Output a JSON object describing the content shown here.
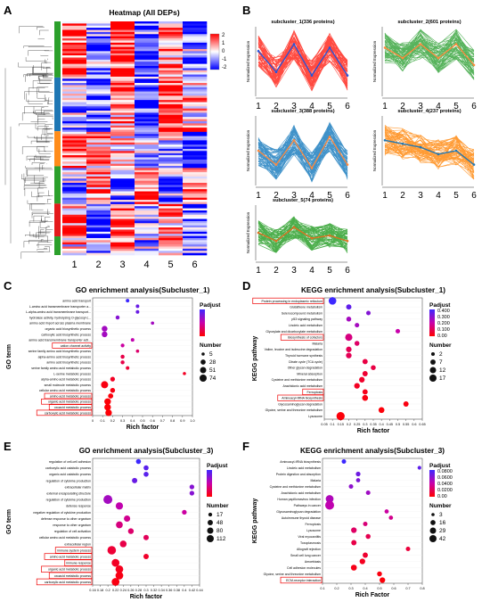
{
  "panels": {
    "A": {
      "label": "A",
      "title": "Heatmap (All DEPs)",
      "legend_ticks": [
        "2",
        "1",
        "0",
        "-1",
        "-2"
      ],
      "columns": [
        "1",
        "2",
        "3",
        "4",
        "5",
        "6"
      ],
      "colors": {
        "high": "#ff0000",
        "mid": "#ffffff",
        "low": "#0000ff"
      }
    },
    "B": {
      "label": "B",
      "ylabel": "Normalized Expression",
      "xticks": [
        "1",
        "2",
        "3",
        "4",
        "5",
        "6"
      ],
      "subclusters": [
        {
          "title": "subcluster_1(336 proteins)",
          "color": "#ff2a1f",
          "mean_color": "#2255dd",
          "trend": [
            0.65,
            0.35,
            0.75,
            0.3,
            0.7,
            0.3
          ]
        },
        {
          "title": "subcluster_2(601 proteins)",
          "color": "#3aa63f",
          "mean_color": "#ff8a3d",
          "trend": [
            0.7,
            0.55,
            0.75,
            0.55,
            0.75,
            0.45
          ]
        },
        {
          "title": "subcluster_3(388 proteins)",
          "color": "#1f7fbf",
          "mean_color": "#ff8a3d",
          "trend": [
            0.5,
            0.3,
            0.65,
            0.25,
            0.7,
            0.3
          ]
        },
        {
          "title": "subcluster_4(237 proteins)",
          "color": "#ff8a10",
          "mean_color": "#1f77b4",
          "trend": [
            0.65,
            0.6,
            0.55,
            0.45,
            0.5,
            0.3
          ]
        },
        {
          "title": "subcluster_5(74 proteins)",
          "color": "#2ca02c",
          "mean_color": "#e07020",
          "trend": [
            0.5,
            0.35,
            0.6,
            0.4,
            0.45,
            0.35
          ]
        }
      ]
    },
    "C": {
      "label": "C",
      "title": "GO enrichment analysis(Subcluster_1)",
      "xlabel": "Rich factor",
      "ylabel": "GO term",
      "xticks": [
        "0",
        "0.1",
        "0.2",
        "0.3",
        "0.4",
        "0.5",
        "0.6",
        "0.7",
        "0.8",
        "0.9",
        "1.0"
      ],
      "legend": {
        "padjust_title": "Padjust",
        "padjust_ticks": [
          "",
          "",
          "",
          "",
          "",
          ""
        ],
        "number_title": "Number",
        "number_values": [
          "5",
          "28",
          "51",
          "74"
        ]
      },
      "rows": [
        {
          "term": "amino acid transport",
          "rf": 0.35,
          "n": 8,
          "p": 0.95,
          "hl": false
        },
        {
          "term": "L-amino acid transmembrane transporter a...",
          "rf": 0.45,
          "n": 8,
          "p": 0.8,
          "hl": false
        },
        {
          "term": "L-alpha-amino acid transmembrane transport...",
          "rf": 0.45,
          "n": 8,
          "p": 0.8,
          "hl": false
        },
        {
          "term": "hydrolase activity, hydrolyzing O-glycosyl c...",
          "rf": 0.25,
          "n": 12,
          "p": 0.7,
          "hl": false
        },
        {
          "term": "amino acid import across plasma membrane",
          "rf": 0.6,
          "n": 6,
          "p": 0.6,
          "hl": false
        },
        {
          "term": "organic acid biosynthetic process",
          "rf": 0.12,
          "n": 40,
          "p": 0.6,
          "hl": false
        },
        {
          "term": "carboxylic acid biosynthetic process",
          "rf": 0.12,
          "n": 40,
          "p": 0.6,
          "hl": false
        },
        {
          "term": "amino acid transmembrane transporter acti...",
          "rf": 0.4,
          "n": 8,
          "p": 0.5,
          "hl": false
        },
        {
          "term": "cation channel activity",
          "rf": 0.3,
          "n": 10,
          "p": 0.45,
          "hl": true
        },
        {
          "term": "serine family amino acid biosynthetic process",
          "rf": 0.45,
          "n": 6,
          "p": 0.3,
          "hl": false
        },
        {
          "term": "alpha-amino acid biosynthetic process",
          "rf": 0.3,
          "n": 12,
          "p": 0.2,
          "hl": false
        },
        {
          "term": "amino acid biosynthetic process",
          "rf": 0.3,
          "n": 12,
          "p": 0.2,
          "hl": false
        },
        {
          "term": "serine family amino acid metabolic process",
          "rf": 0.35,
          "n": 8,
          "p": 0.15,
          "hl": false
        },
        {
          "term": "L-serine metabolic process",
          "rf": 0.92,
          "n": 5,
          "p": 0.1,
          "hl": false
        },
        {
          "term": "alpha-amino acid metabolic process",
          "rf": 0.2,
          "n": 22,
          "p": 0.1,
          "hl": false
        },
        {
          "term": "small molecule metabolic process",
          "rf": 0.12,
          "n": 74,
          "p": 0.05,
          "hl": false
        },
        {
          "term": "cellular amino acid metabolic process",
          "rf": 0.2,
          "n": 25,
          "p": 0.05,
          "hl": false
        },
        {
          "term": "amino acid metabolic process",
          "rf": 0.18,
          "n": 30,
          "p": 0.03,
          "hl": true
        },
        {
          "term": "organic acid metabolic process",
          "rf": 0.15,
          "n": 60,
          "p": 0.02,
          "hl": true
        },
        {
          "term": "oxoacid metabolic process",
          "rf": 0.15,
          "n": 60,
          "p": 0.02,
          "hl": true
        },
        {
          "term": "carboxylic acid metabolic process",
          "rf": 0.16,
          "n": 58,
          "p": 0.02,
          "hl": true
        }
      ]
    },
    "D": {
      "label": "D",
      "title": "KEGG enrichment analysis(Subcluster_1)",
      "xlabel": "Rich factor",
      "ylabel": "KEGG pathway",
      "xticks": [
        "0.05",
        "0.1",
        "0.15",
        "0.2",
        "0.25",
        "0.3",
        "0.35",
        "0.4",
        "0.45",
        "0.5",
        "0.55",
        "0.6",
        "0.65"
      ],
      "legend": {
        "padjust_title": "Padjust",
        "padjust_ticks": [
          "0.400",
          "0.300",
          "0.200",
          "0.100",
          "0.00"
        ],
        "number_title": "Number",
        "number_values": [
          "2",
          "7",
          "12",
          "17"
        ]
      },
      "rows": [
        {
          "term": "Protein processing in endoplasmic reticulum",
          "rf": 0.1,
          "n": 14,
          "p": 0.4,
          "hl": true
        },
        {
          "term": "Glutathione metabolism",
          "rf": 0.2,
          "n": 5,
          "p": 0.35,
          "hl": false
        },
        {
          "term": "Selenocompound metabolism",
          "rf": 0.32,
          "n": 3,
          "p": 0.3,
          "hl": false
        },
        {
          "term": "p53 signaling pathway",
          "rf": 0.2,
          "n": 4,
          "p": 0.25,
          "hl": false
        },
        {
          "term": "Linoleic acid metabolism",
          "rf": 0.25,
          "n": 3,
          "p": 0.25,
          "hl": false
        },
        {
          "term": "Glyoxylate and dicarboxylate metabolism",
          "rf": 0.5,
          "n": 3,
          "p": 0.2,
          "hl": false
        },
        {
          "term": "Biosynthesis of cofactors",
          "rf": 0.2,
          "n": 12,
          "p": 0.15,
          "hl": true
        },
        {
          "term": "Malaria",
          "rf": 0.25,
          "n": 4,
          "p": 0.12,
          "hl": false
        },
        {
          "term": "Valine, leucine and isoleucine degradation",
          "rf": 0.2,
          "n": 6,
          "p": 0.1,
          "hl": false
        },
        {
          "term": "Thyroid hormone synthesis",
          "rf": 0.2,
          "n": 6,
          "p": 0.1,
          "hl": false
        },
        {
          "term": "Citrate cycle (TCA cycle)",
          "rf": 0.3,
          "n": 5,
          "p": 0.08,
          "hl": false
        },
        {
          "term": "Other glycan degradation",
          "rf": 0.35,
          "n": 4,
          "p": 0.08,
          "hl": false
        },
        {
          "term": "Mineral absorption",
          "rf": 0.3,
          "n": 5,
          "p": 0.06,
          "hl": false
        },
        {
          "term": "Cysteine and methionine metabolism",
          "rf": 0.28,
          "n": 6,
          "p": 0.05,
          "hl": false
        },
        {
          "term": "Arachidonic acid metabolism",
          "rf": 0.25,
          "n": 6,
          "p": 0.04,
          "hl": false
        },
        {
          "term": "Ferroptosis",
          "rf": 0.3,
          "n": 5,
          "p": 0.03,
          "hl": true
        },
        {
          "term": "Aminoacyl-tRNA biosynthesis",
          "rf": 0.3,
          "n": 7,
          "p": 0.02,
          "hl": true
        },
        {
          "term": "Glycosaminoglycan degradation",
          "rf": 0.55,
          "n": 5,
          "p": 0.02,
          "hl": false
        },
        {
          "term": "Glycine, serine and threonine metabolism",
          "rf": 0.4,
          "n": 7,
          "p": 0.01,
          "hl": false
        },
        {
          "term": "Lysosome",
          "rf": 0.15,
          "n": 17,
          "p": 0.01,
          "hl": false
        }
      ]
    },
    "E": {
      "label": "E",
      "title": "GO enrichment analysis(Subcluster_3)",
      "xlabel": "Rich factor",
      "ylabel": "GO term",
      "xticks": [
        "0.16",
        "0.18",
        "0.2",
        "0.22",
        "0.24",
        "0.26",
        "0.28",
        "0.3",
        "0.32",
        "0.34",
        "0.36",
        "0.38",
        "0.4",
        "0.42",
        "0.44"
      ],
      "legend": {
        "padjust_title": "Padjust",
        "padjust_ticks": [
          "",
          "",
          "",
          "",
          ""
        ],
        "number_title": "Number",
        "number_values": [
          "17",
          "48",
          "80",
          "112"
        ]
      },
      "rows": [
        {
          "term": "regulation of cell-cell adhesion",
          "rf": 0.28,
          "n": 20,
          "p": 0.95,
          "hl": false
        },
        {
          "term": "carboxylic acid catabolic process",
          "rf": 0.3,
          "n": 20,
          "p": 0.85,
          "hl": false
        },
        {
          "term": "organic acid catabolic process",
          "rf": 0.3,
          "n": 20,
          "p": 0.85,
          "hl": false
        },
        {
          "term": "regulation of cytokine production",
          "rf": 0.27,
          "n": 25,
          "p": 0.8,
          "hl": false
        },
        {
          "term": "extracellular matrix",
          "rf": 0.42,
          "n": 17,
          "p": 0.7,
          "hl": false
        },
        {
          "term": "external encapsulating structure",
          "rf": 0.42,
          "n": 17,
          "p": 0.7,
          "hl": false
        },
        {
          "term": "regulation of cytokine production",
          "rf": 0.2,
          "n": 100,
          "p": 0.6,
          "hl": false
        },
        {
          "term": "defense response",
          "rf": 0.23,
          "n": 60,
          "p": 0.5,
          "hl": false
        },
        {
          "term": "negative regulation of cytokine production",
          "rf": 0.4,
          "n": 17,
          "p": 0.45,
          "hl": false
        },
        {
          "term": "defense response to other organism",
          "rf": 0.25,
          "n": 40,
          "p": 0.4,
          "hl": false
        },
        {
          "term": "response to other organism",
          "rf": 0.23,
          "n": 50,
          "p": 0.35,
          "hl": false
        },
        {
          "term": "regulation of cell activation",
          "rf": 0.26,
          "n": 30,
          "p": 0.3,
          "hl": false
        },
        {
          "term": "cellular amino acid metabolic process",
          "rf": 0.3,
          "n": 25,
          "p": 0.25,
          "hl": false
        },
        {
          "term": "extracellular region",
          "rf": 0.24,
          "n": 48,
          "p": 0.2,
          "hl": false
        },
        {
          "term": "immune system process",
          "rf": 0.21,
          "n": 90,
          "p": 0.15,
          "hl": true
        },
        {
          "term": "amino acid metabolic process",
          "rf": 0.3,
          "n": 25,
          "p": 0.12,
          "hl": true
        },
        {
          "term": "immune response",
          "rf": 0.22,
          "n": 70,
          "p": 0.1,
          "hl": true
        },
        {
          "term": "organic acid metabolic process",
          "rf": 0.23,
          "n": 70,
          "p": 0.08,
          "hl": true
        },
        {
          "term": "oxoacid metabolic process",
          "rf": 0.23,
          "n": 70,
          "p": 0.06,
          "hl": true
        },
        {
          "term": "carboxylic acid metabolic process",
          "rf": 0.22,
          "n": 70,
          "p": 0.05,
          "hl": true
        }
      ]
    },
    "F": {
      "label": "F",
      "title": "KEGG enrichment analysis(Subcluster_3)",
      "xlabel": "Rich Factor",
      "ylabel": "KEGG pathway",
      "xticks": [
        "0.1",
        "0.2",
        "0.3",
        "0.4",
        "0.5",
        "0.6",
        "0.7",
        "0.8"
      ],
      "legend": {
        "padjust_title": "Padjust",
        "padjust_ticks": [
          "0.0800",
          "0.0600",
          "0.0400",
          "0.0200",
          "0.00"
        ],
        "number_title": "Number",
        "number_values": [
          "3",
          "16",
          "29",
          "42"
        ]
      },
      "rows": [
        {
          "term": "Aminoacyl-tRNA biosynthesis",
          "rf": 0.25,
          "n": 6,
          "p": 0.085,
          "hl": false
        },
        {
          "term": "Linoleic acid metabolism",
          "rf": 0.78,
          "n": 3,
          "p": 0.075,
          "hl": false
        },
        {
          "term": "Protein digestion and absorption",
          "rf": 0.35,
          "n": 7,
          "p": 0.07,
          "hl": false
        },
        {
          "term": "Malaria",
          "rf": 0.35,
          "n": 5,
          "p": 0.065,
          "hl": false
        },
        {
          "term": "Cysteine and methionine metabolism",
          "rf": 0.3,
          "n": 6,
          "p": 0.06,
          "hl": false
        },
        {
          "term": "Arachidonic acid metabolism",
          "rf": 0.42,
          "n": 6,
          "p": 0.055,
          "hl": false
        },
        {
          "term": "Human papillomavirus infection",
          "rf": 0.15,
          "n": 30,
          "p": 0.05,
          "hl": false
        },
        {
          "term": "Pathways in cancer",
          "rf": 0.15,
          "n": 42,
          "p": 0.045,
          "hl": false
        },
        {
          "term": "Glycosaminoglycan degradation",
          "rf": 0.55,
          "n": 5,
          "p": 0.04,
          "hl": false
        },
        {
          "term": "Autoimmune thyroid disease",
          "rf": 0.58,
          "n": 5,
          "p": 0.035,
          "hl": false
        },
        {
          "term": "Ferroptosis",
          "rf": 0.4,
          "n": 6,
          "p": 0.03,
          "hl": false
        },
        {
          "term": "Lysosome",
          "rf": 0.32,
          "n": 12,
          "p": 0.025,
          "hl": false
        },
        {
          "term": "Viral myocarditis",
          "rf": 0.42,
          "n": 8,
          "p": 0.02,
          "hl": false
        },
        {
          "term": "Toxoplasmosis",
          "rf": 0.32,
          "n": 10,
          "p": 0.018,
          "hl": false
        },
        {
          "term": "Allograft rejection",
          "rf": 0.7,
          "n": 6,
          "p": 0.015,
          "hl": false
        },
        {
          "term": "Small cell lung cancer",
          "rf": 0.4,
          "n": 10,
          "p": 0.012,
          "hl": false
        },
        {
          "term": "Amoebiasis",
          "rf": 0.38,
          "n": 12,
          "p": 0.008,
          "hl": false
        },
        {
          "term": "Cell adhesion molecules",
          "rf": 0.32,
          "n": 14,
          "p": 0.006,
          "hl": false
        },
        {
          "term": "Glycine, serine and threonine metabolism",
          "rf": 0.5,
          "n": 8,
          "p": 0.004,
          "hl": false
        },
        {
          "term": "ECM-receptor interaction",
          "rf": 0.52,
          "n": 12,
          "p": 0.002,
          "hl": true
        }
      ]
    }
  }
}
